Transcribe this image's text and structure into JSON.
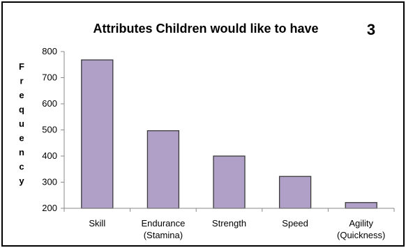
{
  "chart_data": {
    "type": "bar",
    "title": "Attributes Children would like to have",
    "badge": "3",
    "ylabel": "Frequency",
    "ylabel_letters": [
      "F",
      "r",
      "e",
      "q",
      "u",
      "e",
      "n",
      "c",
      "y"
    ],
    "categories": [
      [
        "Skill"
      ],
      [
        "Endurance",
        "(Stamina)"
      ],
      [
        "Strength"
      ],
      [
        "Speed"
      ],
      [
        "Agility",
        "(Quickness)"
      ]
    ],
    "values": [
      768,
      497,
      400,
      322,
      222
    ],
    "ylim": [
      200,
      800
    ],
    "yticks": [
      200,
      300,
      400,
      500,
      600,
      700,
      800
    ],
    "grid": false,
    "bar_color": "#b0a0c8"
  }
}
